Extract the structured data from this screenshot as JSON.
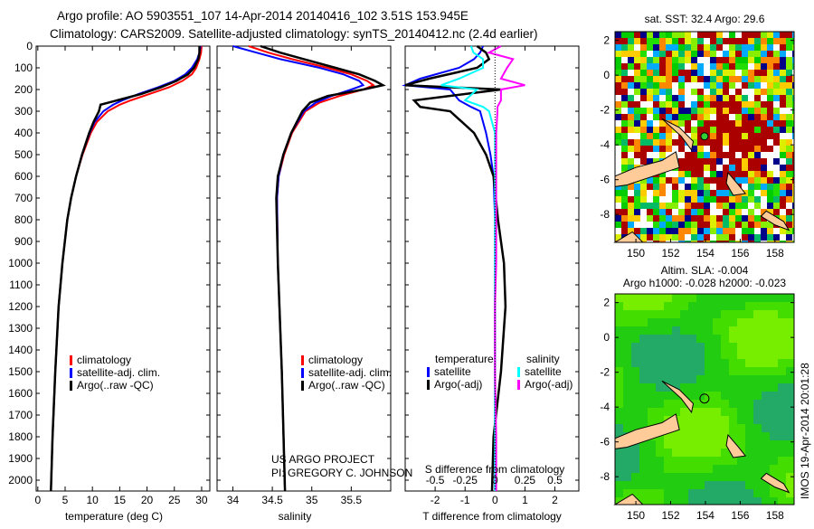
{
  "title_line1": "Argo profile: AO 5903551_107 14-Apr-2014 20140416_102 3.51S 153.945E",
  "title_line2": "Climatology: CARS2009. Satellite-adjusted climatology: synTS_20140412.nc (2.4d earlier)",
  "credit": {
    "line1": "US ARGO PROJECT",
    "line2": "PI: GREGORY C. JOHNSON"
  },
  "timestamp": "IMOS 19-Apr-2014 20:01:28",
  "colors": {
    "climatology": "#ff0000",
    "satellite": "#0000ff",
    "argo": "#000000",
    "sal_satellite": "#00ffff",
    "sal_argo": "#ff00ff"
  },
  "chart_data": [
    {
      "type": "line",
      "title": "",
      "xlabel": "temperature (deg C)",
      "ylabel": "",
      "xlim": [
        -0.3,
        31.5
      ],
      "ylim": [
        2050,
        0
      ],
      "xticks": [
        "0",
        "5",
        "10",
        "15",
        "20",
        "25",
        "30"
      ],
      "yticks": [
        "0",
        "100",
        "200",
        "300",
        "400",
        "500",
        "600",
        "700",
        "800",
        "900",
        "1000",
        "1100",
        "1200",
        "1300",
        "1400",
        "1500",
        "1600",
        "1700",
        "1800",
        "1900",
        "2000"
      ],
      "legend": [
        "climatology",
        "satellite-adj. clim.",
        "Argo(..raw -QC)"
      ],
      "depth": [
        0,
        30,
        60,
        100,
        130,
        160,
        190,
        220,
        250,
        270,
        300,
        350,
        400,
        500,
        600,
        700,
        800,
        1000,
        1200,
        1500,
        1800,
        2050
      ],
      "series": [
        {
          "name": "climatology",
          "values": [
            30,
            29.9,
            29.6,
            29.0,
            28.2,
            26.5,
            24,
            20.5,
            17,
            15,
            12.8,
            10.8,
            9.7,
            8.2,
            7.0,
            6.1,
            5.4,
            4.5,
            3.8,
            3.2,
            2.7,
            2.4
          ]
        },
        {
          "name": "satellite-adj. clim.",
          "values": [
            29.8,
            29.6,
            29.2,
            28.2,
            27,
            25,
            22,
            18.5,
            15.5,
            13.8,
            12,
            10.4,
            9.5,
            8.1,
            7.0,
            6.1,
            5.4,
            4.5,
            3.8,
            3.2,
            2.7,
            2.4
          ]
        },
        {
          "name": "Argo(..raw -QC)",
          "values": [
            29.6,
            29.6,
            29.4,
            28.6,
            27.5,
            25.4,
            22.5,
            19,
            14.5,
            11.5,
            11.2,
            10.2,
            9.4,
            8.1,
            7.0,
            6.1,
            5.4,
            4.5,
            3.8,
            3.2,
            2.7,
            2.4
          ]
        }
      ]
    },
    {
      "type": "line",
      "xlabel": "salinity",
      "xlim": [
        33.8,
        36.0
      ],
      "ylim": [
        2050,
        0
      ],
      "xticks": [
        "34",
        "34.5",
        "35",
        "35.5"
      ],
      "legend": [
        "climatology",
        "satellite-adj. clim.",
        "Argo(..raw -QC)"
      ],
      "depth": [
        0,
        30,
        60,
        100,
        130,
        160,
        180,
        200,
        230,
        260,
        300,
        400,
        500,
        600,
        700,
        1000,
        1500,
        2050
      ],
      "series": [
        {
          "name": "climatology",
          "values": [
            34.2,
            34.45,
            34.75,
            35.2,
            35.5,
            35.7,
            35.78,
            35.65,
            35.35,
            35.1,
            34.92,
            34.75,
            34.65,
            34.58,
            34.56,
            34.57,
            34.62,
            34.66
          ]
        },
        {
          "name": "satellite-adj. clim.",
          "values": [
            34.0,
            34.3,
            34.6,
            35.1,
            35.4,
            35.6,
            35.65,
            35.5,
            35.25,
            35.05,
            34.9,
            34.74,
            34.64,
            34.58,
            34.56,
            34.57,
            34.62,
            34.66
          ]
        },
        {
          "name": "Argo(..raw -QC)",
          "values": [
            34.35,
            34.6,
            34.9,
            35.3,
            35.6,
            35.8,
            35.9,
            35.65,
            35.2,
            34.98,
            34.88,
            34.74,
            34.64,
            34.57,
            34.55,
            34.57,
            34.62,
            34.66
          ]
        }
      ]
    },
    {
      "type": "line",
      "xlabel": "T difference from climatology",
      "x2label": "S difference from climatology",
      "xlim": [
        -3,
        2.8
      ],
      "ylim": [
        2050,
        0
      ],
      "xticks": [
        "-2",
        "-1",
        "0",
        "1",
        "2"
      ],
      "x2ticks": [
        "-0.5",
        "-0.25",
        "0",
        "0.25",
        "0.5"
      ],
      "legend_groups": {
        "temperature": [
          "satellite",
          "Argo(-adj)"
        ],
        "salinity": [
          "satellite",
          "Argo(-adj)"
        ]
      },
      "depth": [
        0,
        30,
        60,
        100,
        150,
        180,
        200,
        250,
        280,
        300,
        400,
        500,
        600,
        800,
        1000,
        1200,
        1500,
        1800,
        2050
      ],
      "series": [
        {
          "name": "temperature satellite",
          "values": [
            -0.4,
            -0.5,
            -0.7,
            -1.2,
            -2.5,
            -3,
            -1.5,
            -1.2,
            -0.8,
            -0.5,
            -0.3,
            -0.15,
            -0.05,
            0,
            0,
            0,
            0,
            0,
            0
          ]
        },
        {
          "name": "temperature Argo(-adj)",
          "values": [
            -0.6,
            -0.3,
            -0.2,
            -0.6,
            -2.2,
            -3,
            0.2,
            -2.7,
            -2.5,
            -1.5,
            -0.7,
            -0.3,
            -0.05,
            0.1,
            0.3,
            0.35,
            0.2,
            -0.05,
            -0.1
          ]
        },
        {
          "name": "salinity satellite",
          "values": [
            -0.2,
            -0.18,
            -0.1,
            -0.1,
            -0.3,
            -0.45,
            -0.15,
            -0.25,
            -0.1,
            -0.05,
            0,
            0,
            0,
            0,
            0,
            0,
            0,
            0,
            0
          ]
        },
        {
          "name": "salinity Argo(-adj)",
          "values": [
            0.05,
            -0.05,
            0.15,
            0.1,
            0.05,
            0.25,
            0.05,
            0.05,
            0.02,
            0.02,
            0.01,
            0.01,
            0.01,
            0.01,
            0.01,
            0,
            0,
            0.01,
            0.01
          ]
        }
      ]
    },
    {
      "type": "heatmap",
      "title": "sat. SST: 32.4 Argo: 29.6",
      "xlim": [
        148.8,
        159.1
      ],
      "ylim": [
        -9.6,
        2.5
      ],
      "xticks": [
        "150",
        "152",
        "154",
        "156",
        "158"
      ],
      "yticks": [
        "2",
        "0",
        "-2",
        "-4",
        "-6",
        "-8"
      ],
      "marker": {
        "lon": 153.945,
        "lat": -3.51
      }
    },
    {
      "type": "heatmap",
      "title": "Altim. SLA: -0.004",
      "subtitle": "Argo h1000: -0.028 h2000: -0.023",
      "xlim": [
        148.8,
        159.1
      ],
      "ylim": [
        -9.6,
        2.5
      ],
      "xticks": [
        "150",
        "152",
        "154",
        "156",
        "158"
      ],
      "yticks": [
        "2",
        "0",
        "-2",
        "-4",
        "-6",
        "-8"
      ],
      "marker": {
        "lon": 153.945,
        "lat": -3.51
      }
    }
  ]
}
